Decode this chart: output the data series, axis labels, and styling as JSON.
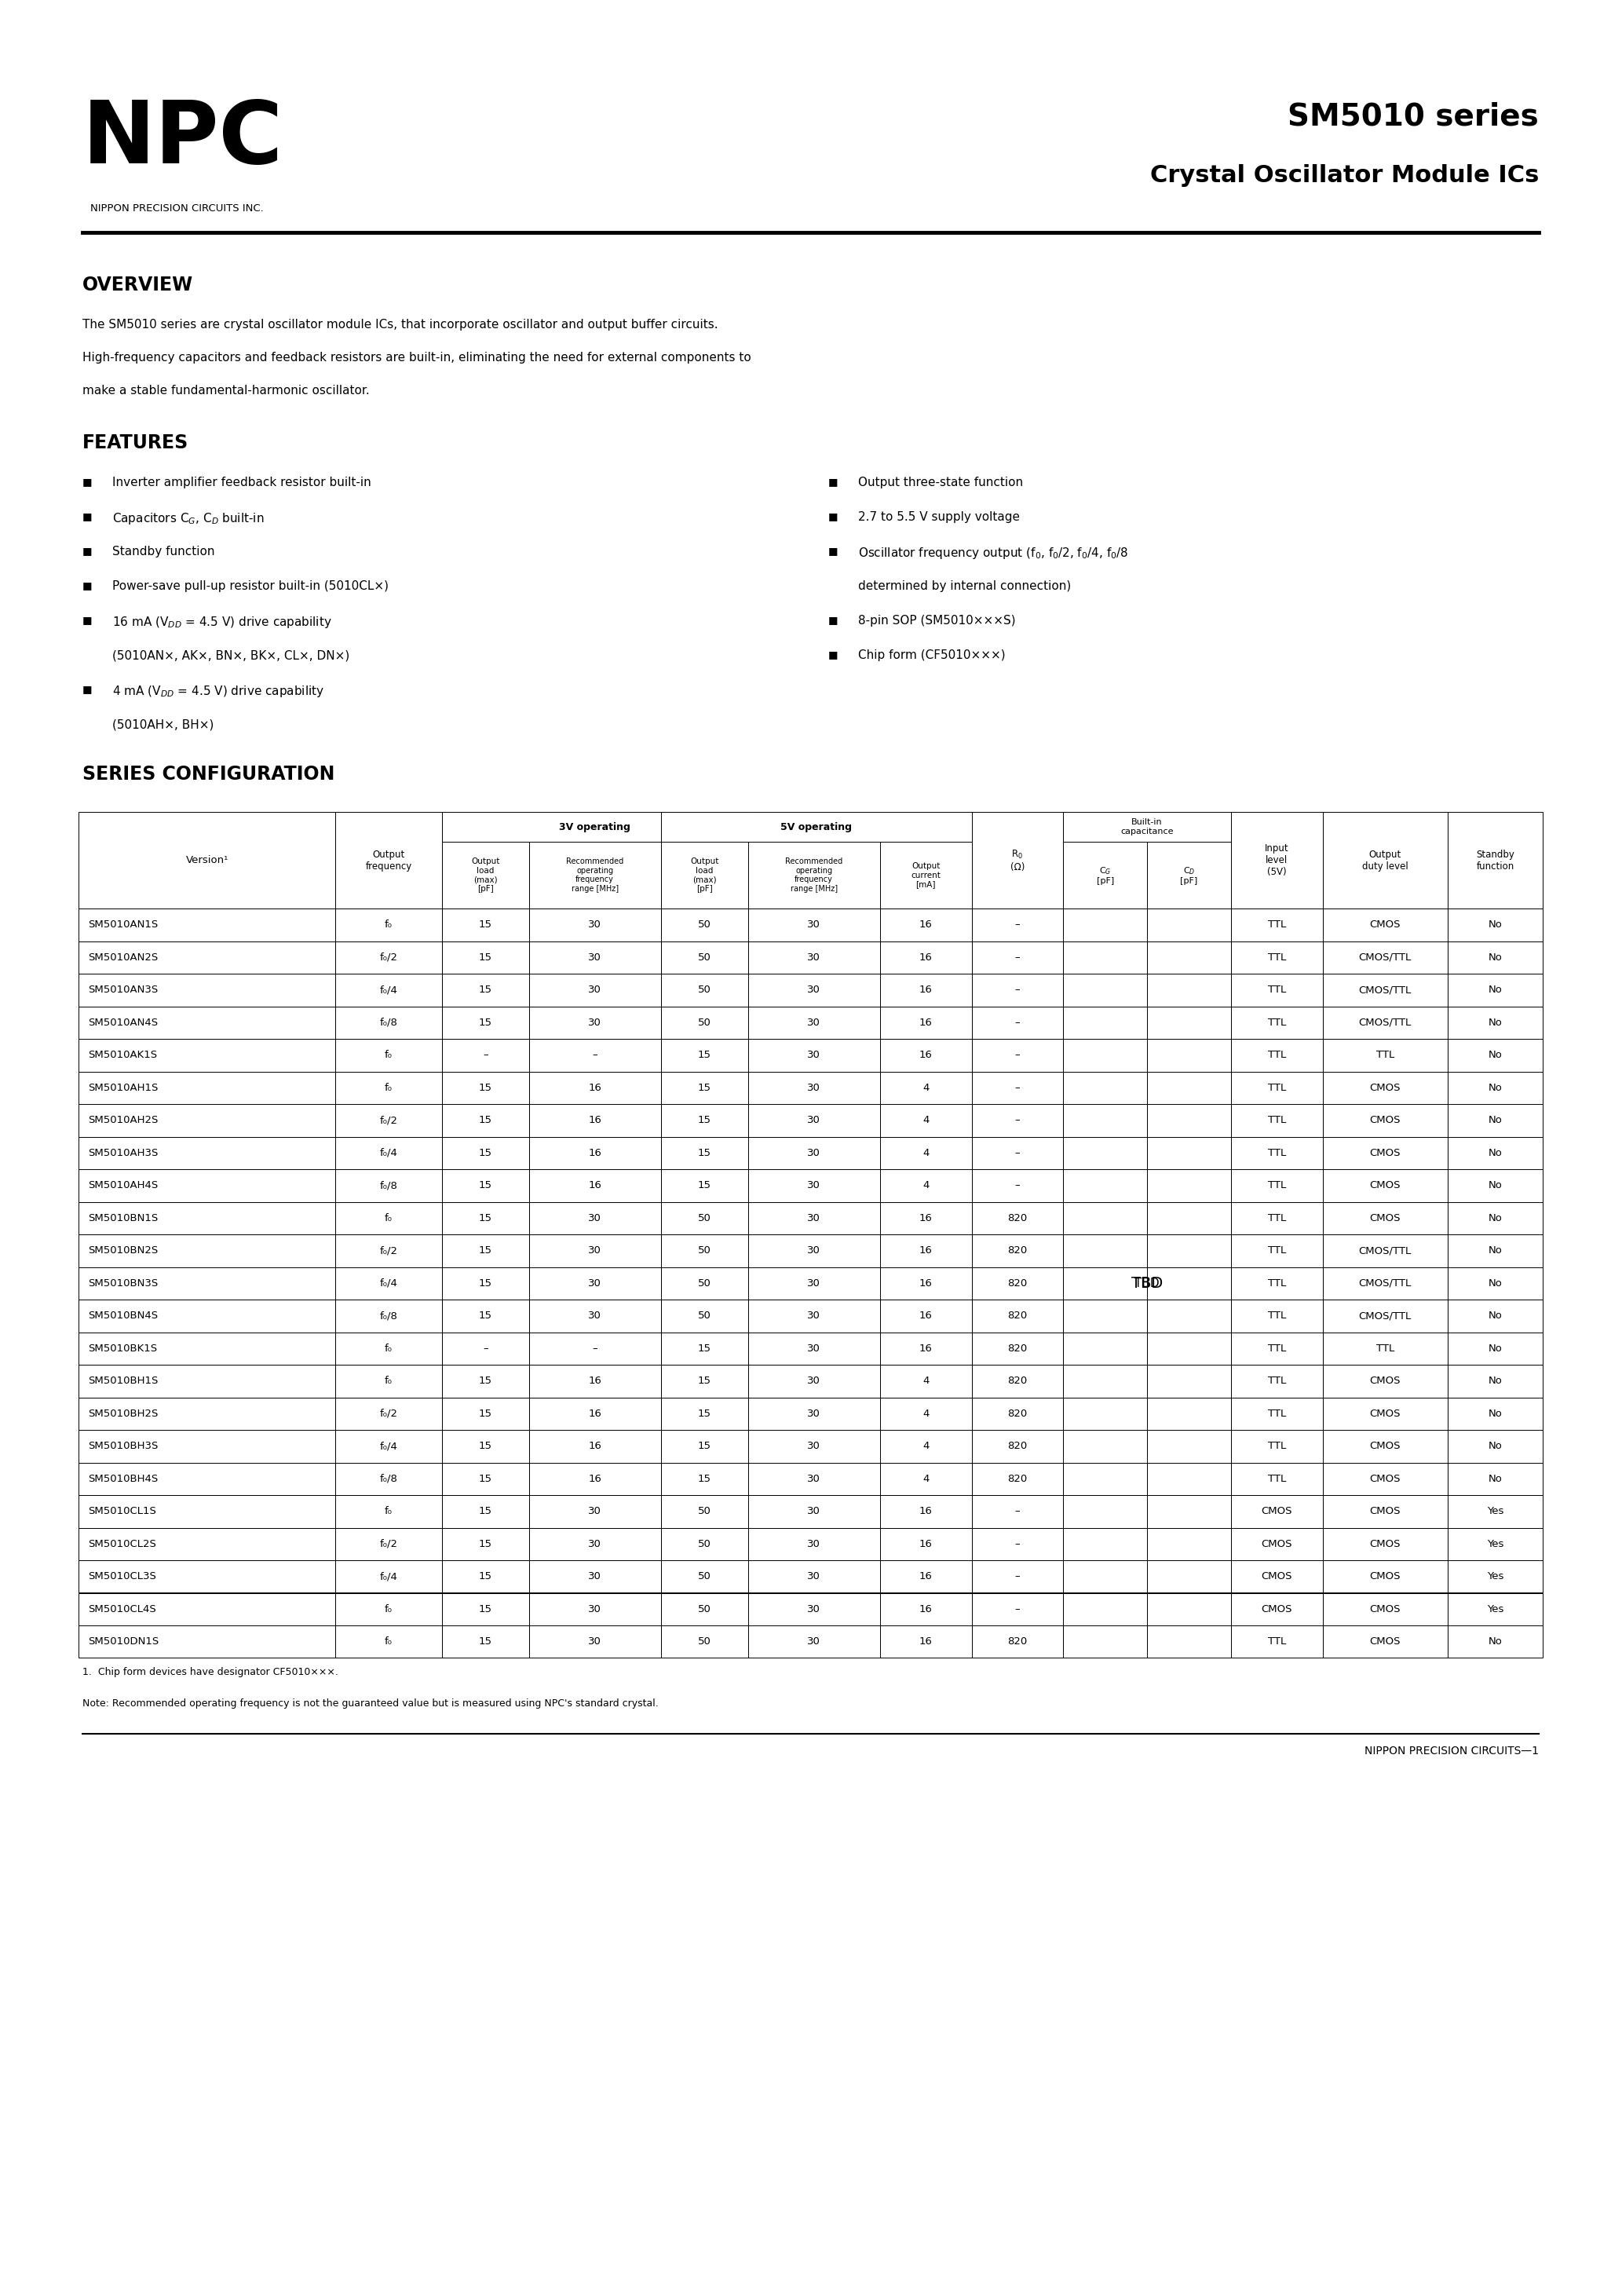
{
  "page_bg": "#ffffff",
  "company_name": "NPC",
  "company_subtitle": "NIPPON PRECISION CIRCUITS INC.",
  "series_title": "SM5010 series",
  "product_title": "Crystal Oscillator Module ICs",
  "overview_title": "OVERVIEW",
  "overview_text1": "The SM5010 series are crystal oscillator module ICs, that incorporate oscillator and output buffer circuits.",
  "overview_text2": "High-frequency capacitors and feedback resistors are built-in, eliminating the need for external components to",
  "overview_text3": "make a stable fundamental-harmonic oscillator.",
  "features_title": "FEATURES",
  "series_config_title": "SERIES CONFIGURATION",
  "footnote1": "1.  Chip form devices have designator CF5010×××.",
  "footnote2": "Note: Recommended operating frequency is not the guaranteed value but is measured using NPC's standard crystal.",
  "footer_text": "NIPPON PRECISION CIRCUITS—1",
  "table_data": [
    [
      "SM5010AN1S",
      "f₀",
      "15",
      "30",
      "50",
      "30",
      "16",
      "–",
      "",
      "TTL",
      "CMOS",
      "No"
    ],
    [
      "SM5010AN2S",
      "f₀/2",
      "15",
      "30",
      "50",
      "30",
      "16",
      "–",
      "",
      "TTL",
      "CMOS/TTL",
      "No"
    ],
    [
      "SM5010AN3S",
      "f₀/4",
      "15",
      "30",
      "50",
      "30",
      "16",
      "–",
      "",
      "TTL",
      "CMOS/TTL",
      "No"
    ],
    [
      "SM5010AN4S",
      "f₀/8",
      "15",
      "30",
      "50",
      "30",
      "16",
      "–",
      "",
      "TTL",
      "CMOS/TTL",
      "No"
    ],
    [
      "SM5010AK1S",
      "f₀",
      "–",
      "–",
      "15",
      "30",
      "16",
      "–",
      "",
      "TTL",
      "TTL",
      "No"
    ],
    [
      "SM5010AH1S",
      "f₀",
      "15",
      "16",
      "15",
      "30",
      "4",
      "–",
      "",
      "TTL",
      "CMOS",
      "No"
    ],
    [
      "SM5010AH2S",
      "f₀/2",
      "15",
      "16",
      "15",
      "30",
      "4",
      "–",
      "",
      "TTL",
      "CMOS",
      "No"
    ],
    [
      "SM5010AH3S",
      "f₀/4",
      "15",
      "16",
      "15",
      "30",
      "4",
      "–",
      "",
      "TTL",
      "CMOS",
      "No"
    ],
    [
      "SM5010AH4S",
      "f₀/8",
      "15",
      "16",
      "15",
      "30",
      "4",
      "–",
      "",
      "TTL",
      "CMOS",
      "No"
    ],
    [
      "SM5010BN1S",
      "f₀",
      "15",
      "30",
      "50",
      "30",
      "16",
      "820",
      "",
      "TTL",
      "CMOS",
      "No"
    ],
    [
      "SM5010BN2S",
      "f₀/2",
      "15",
      "30",
      "50",
      "30",
      "16",
      "820",
      "",
      "TTL",
      "CMOS/TTL",
      "No"
    ],
    [
      "SM5010BN3S",
      "f₀/4",
      "15",
      "30",
      "50",
      "30",
      "16",
      "820",
      "TBD",
      "TTL",
      "CMOS/TTL",
      "No"
    ],
    [
      "SM5010BN4S",
      "f₀/8",
      "15",
      "30",
      "50",
      "30",
      "16",
      "820",
      "",
      "TTL",
      "CMOS/TTL",
      "No"
    ],
    [
      "SM5010BK1S",
      "f₀",
      "–",
      "–",
      "15",
      "30",
      "16",
      "820",
      "",
      "TTL",
      "TTL",
      "No"
    ],
    [
      "SM5010BH1S",
      "f₀",
      "15",
      "16",
      "15",
      "30",
      "4",
      "820",
      "",
      "TTL",
      "CMOS",
      "No"
    ],
    [
      "SM5010BH2S",
      "f₀/2",
      "15",
      "16",
      "15",
      "30",
      "4",
      "820",
      "",
      "TTL",
      "CMOS",
      "No"
    ],
    [
      "SM5010BH3S",
      "f₀/4",
      "15",
      "16",
      "15",
      "30",
      "4",
      "820",
      "",
      "TTL",
      "CMOS",
      "No"
    ],
    [
      "SM5010BH4S",
      "f₀/8",
      "15",
      "16",
      "15",
      "30",
      "4",
      "820",
      "",
      "TTL",
      "CMOS",
      "No"
    ],
    [
      "SM5010CL1S",
      "f₀",
      "15",
      "30",
      "50",
      "30",
      "16",
      "–",
      "",
      "CMOS",
      "CMOS",
      "Yes"
    ],
    [
      "SM5010CL2S",
      "f₀/2",
      "15",
      "30",
      "50",
      "30",
      "16",
      "–",
      "",
      "CMOS",
      "CMOS",
      "Yes"
    ],
    [
      "SM5010CL3S",
      "f₀/4",
      "15",
      "30",
      "50",
      "30",
      "16",
      "–",
      "",
      "CMOS",
      "CMOS",
      "Yes"
    ],
    [
      "SM5010CL4S",
      "f₀",
      "15",
      "30",
      "50",
      "30",
      "16",
      "–",
      "",
      "CMOS",
      "CMOS",
      "Yes"
    ],
    [
      "SM5010DN1S",
      "f₀",
      "15",
      "30",
      "50",
      "30",
      "16",
      "820",
      "",
      "TTL",
      "CMOS",
      "No"
    ]
  ]
}
